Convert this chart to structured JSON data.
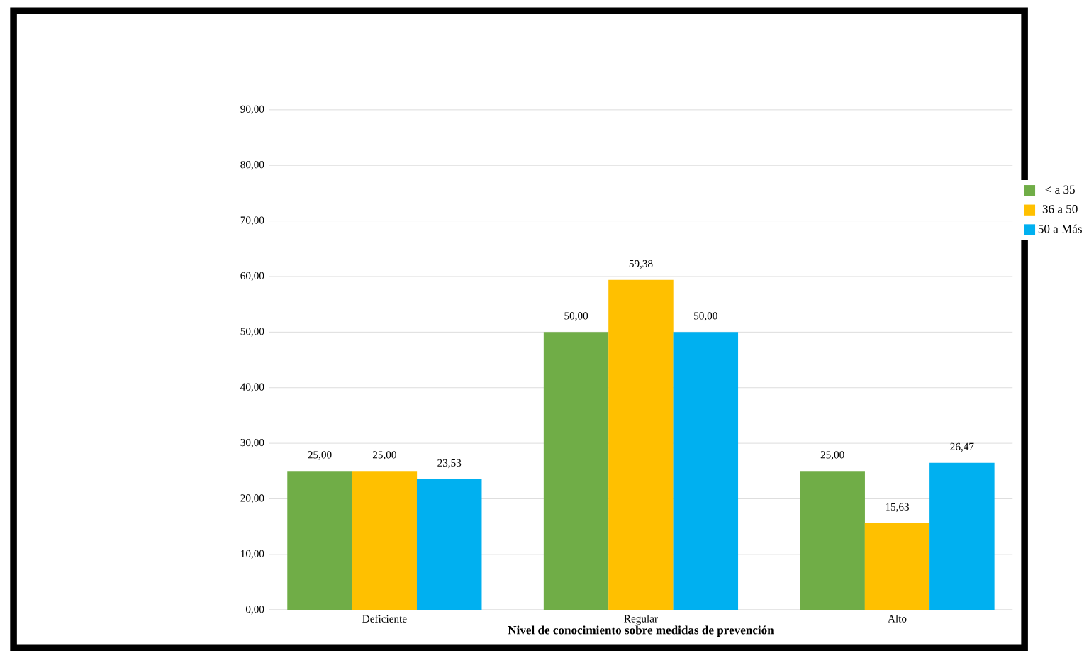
{
  "chart_data": {
    "type": "bar",
    "xlabel": "**Nivel de conocimiento sobre medidas de prevención**",
    "categories": [
      "Deficiente",
      "Regular",
      "Alto"
    ],
    "series": [
      {
        "name": "< a 35",
        "color": "#70ad47",
        "values": [
          25,
          50,
          25
        ],
        "value_labels": [
          "25,00",
          "50,00",
          "25,00"
        ]
      },
      {
        "name": "36 a 50",
        "color": "#ffc000",
        "values": [
          25,
          59.38,
          15.63
        ],
        "value_labels": [
          "25,00",
          "59,38",
          "15,63"
        ]
      },
      {
        "name": "50 a Más",
        "color": "#00b0f0",
        "values": [
          23.53,
          50,
          26.47
        ],
        "value_labels": [
          "23,53",
          "50,00",
          "26,47"
        ]
      }
    ],
    "ylim": [
      0,
      90
    ],
    "yticks": [
      {
        "value": 0,
        "label": "0,00"
      },
      {
        "value": 10,
        "label": "10,00"
      },
      {
        "value": 20,
        "label": "20,00"
      },
      {
        "value": 30,
        "label": "30,00"
      },
      {
        "value": 40,
        "label": "40,00"
      },
      {
        "value": 50,
        "label": "50,00"
      },
      {
        "value": 60,
        "label": "60,00"
      },
      {
        "value": 70,
        "label": "70,00"
      },
      {
        "value": 80,
        "label": "80,00"
      },
      {
        "value": 90,
        "label": "90,00"
      }
    ],
    "grid": "y",
    "legend": "right"
  }
}
